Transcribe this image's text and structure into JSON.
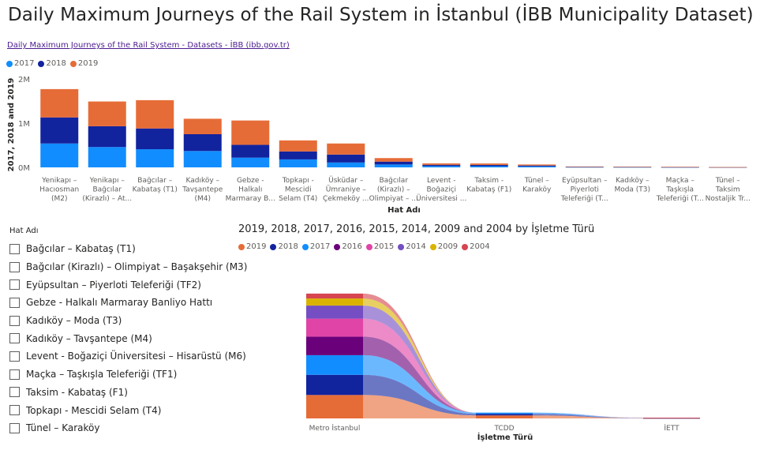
{
  "title": "Daily Maximum Journeys of the Rail System in İstanbul (İBB Municipality Dataset)",
  "source_link": "Daily Maximum Journeys of the Rail System - Datasets - İBB (ibb.gov.tr)",
  "colors": {
    "2017": "#118dff",
    "2018": "#12239e",
    "2019": "#e66c37",
    "2016": "#6b007b",
    "2015": "#e044a7",
    "2014": "#744ec2",
    "2009": "#d9b300",
    "2004": "#d64550"
  },
  "chart_data": [
    {
      "type": "bar",
      "stacked": true,
      "xlabel": "Hat Adı",
      "ylabel": "2017, 2018 and 2019",
      "ylim": [
        0,
        2000000
      ],
      "yticks": [
        "0M",
        "1M",
        "2M"
      ],
      "legend_position": "top-left",
      "categories": [
        "Yenikapı – Hacıosman (M2)",
        "Yenikapı – Bağcılar (Kirazlı) – At...",
        "Bağcılar – Kabataş (T1)",
        "Kadıköy – Tavşantepe (M4)",
        "Gebze - Halkalı Marmaray B...",
        "Topkapı - Mescidi Selam (T4)",
        "Üsküdar – Ümraniye – Çekmeköy ...",
        "Bağcılar (Kirazlı) – Olimpiyat – ...",
        "Levent - Boğaziçi Üniversitesi ...",
        "Taksim - Kabataş (F1)",
        "Tünel – Karaköy",
        "Eyüpsultan – Piyerloti Teleferiği (T...",
        "Kadıköy – Moda (T3)",
        "Maçka – Taşkışla Teleferiği (T...",
        "Tünel – Taksim Nostaljik Tr..."
      ],
      "tick_labels": [
        [
          "Yenikapı –",
          "Hacıosman",
          "(M2)"
        ],
        [
          "Yenikapı –",
          "Bağcılar",
          "(Kirazlı) – At..."
        ],
        [
          "Bağcılar –",
          "Kabataş (T1)"
        ],
        [
          "Kadıköy –",
          "Tavşantepe",
          "(M4)"
        ],
        [
          "Gebze -",
          "Halkalı",
          "Marmaray B..."
        ],
        [
          "Topkapı -",
          "Mescidi",
          "Selam (T4)"
        ],
        [
          "Üsküdar –",
          "Ümraniye –",
          "Çekmeköy ..."
        ],
        [
          "Bağcılar",
          "(Kirazlı) –",
          "Olimpiyat – ..."
        ],
        [
          "Levent -",
          "Boğaziçi",
          "Üniversitesi ..."
        ],
        [
          "Taksim -",
          "Kabataş (F1)"
        ],
        [
          "Tünel –",
          "Karaköy"
        ],
        [
          "Eyüpsultan –",
          "Piyerloti",
          "Teleferiği (T..."
        ],
        [
          "Kadıköy –",
          "Moda (T3)"
        ],
        [
          "Maçka –",
          "Taşkışla",
          "Teleferiği (T..."
        ],
        [
          "Tünel –",
          "Taksim",
          "Nostaljik Tr..."
        ]
      ],
      "series": [
        {
          "name": "2017",
          "values": [
            540000,
            460000,
            410000,
            370000,
            220000,
            180000,
            110000,
            65000,
            30000,
            28000,
            22000,
            6000,
            5000,
            4000,
            3000
          ]
        },
        {
          "name": "2018",
          "values": [
            590000,
            470000,
            470000,
            380000,
            290000,
            180000,
            180000,
            65000,
            28000,
            28000,
            20000,
            7000,
            5000,
            4000,
            2000
          ]
        },
        {
          "name": "2019",
          "values": [
            640000,
            560000,
            640000,
            350000,
            550000,
            250000,
            250000,
            80000,
            32000,
            32000,
            23000,
            6000,
            5000,
            5000,
            2000
          ]
        }
      ]
    },
    {
      "type": "area",
      "subtype": "ribbon",
      "title": "2019, 2018, 2017, 2016, 2015, 2014, 2009 and 2004 by İşletme Türü",
      "xlabel": "İşletme Türü",
      "categories": [
        "Metro İstanbul",
        "TCDD",
        "İETT"
      ],
      "legend_position": "top-left",
      "series": [
        {
          "name": "2019",
          "values": [
            4300000,
            550000,
            30000
          ]
        },
        {
          "name": "2018",
          "values": [
            3700000,
            290000,
            25000
          ]
        },
        {
          "name": "2017",
          "values": [
            3600000,
            220000,
            25000
          ]
        },
        {
          "name": "2016",
          "values": [
            3400000,
            0,
            20000
          ]
        },
        {
          "name": "2015",
          "values": [
            3300000,
            0,
            20000
          ]
        },
        {
          "name": "2014",
          "values": [
            2400000,
            0,
            15000
          ]
        },
        {
          "name": "2009",
          "values": [
            1300000,
            0,
            5000
          ]
        },
        {
          "name": "2004",
          "values": [
            900000,
            0,
            5000
          ]
        }
      ]
    }
  ],
  "slicer": {
    "title": "Hat Adı",
    "items": [
      "Bağcılar – Kabataş (T1)",
      "Bağcılar (Kirazlı) – Olimpiyat – Başakşehir (M3)",
      "Eyüpsultan – Piyerloti Teleferiği (TF2)",
      "Gebze - Halkalı Marmaray Banliyo Hattı",
      "Kadıköy – Moda (T3)",
      "Kadıköy – Tavşantepe (M4)",
      "Levent - Boğaziçi Üniversitesi – Hisarüstü (M6)",
      "Maçka – Taşkışla Teleferiği (TF1)",
      "Taksim - Kabataş (F1)",
      "Topkapı - Mescidi Selam (T4)",
      "Tünel – Karaköy"
    ]
  }
}
